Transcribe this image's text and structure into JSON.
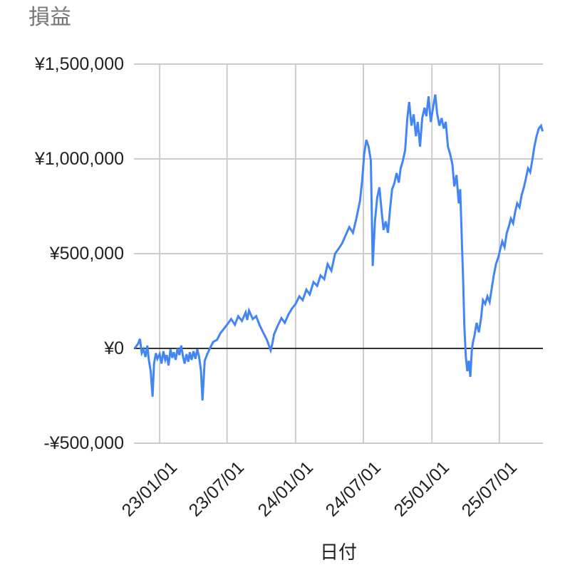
{
  "chart_data": {
    "type": "line",
    "title": "損益",
    "xlabel": "日付",
    "ylabel": "",
    "legend": "none",
    "grid": true,
    "colors": {
      "series": "#4285f4",
      "gridline": "#cccccc",
      "baseline": "#333333",
      "title": "#757575",
      "labels": "#212121",
      "background": "#ffffff"
    },
    "line_width": 3,
    "ylim": [
      -500000,
      1500000
    ],
    "x_domain": [
      "22/10/24",
      "25/10/26"
    ],
    "y_ticks": [
      {
        "label": "¥1,500,000",
        "value": 1500000
      },
      {
        "label": "¥1,000,000",
        "value": 1000000
      },
      {
        "label": "¥500,000",
        "value": 500000
      },
      {
        "label": "¥0",
        "value": 0
      },
      {
        "label": "-¥500,000",
        "value": -500000
      }
    ],
    "x_ticks": [
      {
        "label": "23/01/01",
        "date": "23/01/01"
      },
      {
        "label": "23/07/01",
        "date": "23/07/01"
      },
      {
        "label": "24/01/01",
        "date": "24/01/01"
      },
      {
        "label": "24/07/01",
        "date": "24/07/01"
      },
      {
        "label": "25/01/01",
        "date": "25/01/01"
      },
      {
        "label": "25/07/01",
        "date": "25/07/01"
      }
    ],
    "points": [
      [
        "22/10/26",
        0
      ],
      [
        "22/11/04",
        25000
      ],
      [
        "22/11/09",
        50000
      ],
      [
        "22/11/14",
        -25000
      ],
      [
        "22/11/19",
        -5000
      ],
      [
        "22/11/24",
        -45000
      ],
      [
        "22/11/29",
        15000
      ],
      [
        "22/12/03",
        -60000
      ],
      [
        "22/12/08",
        -120000
      ],
      [
        "22/12/13",
        -255000
      ],
      [
        "22/12/17",
        -80000
      ],
      [
        "22/12/22",
        -25000
      ],
      [
        "22/12/26",
        -55000
      ],
      [
        "23/01/01",
        -30000
      ],
      [
        "23/01/06",
        -80000
      ],
      [
        "23/01/11",
        -15000
      ],
      [
        "23/01/16",
        -60000
      ],
      [
        "23/01/20",
        -35000
      ],
      [
        "23/01/25",
        -90000
      ],
      [
        "23/01/30",
        -5000
      ],
      [
        "23/02/04",
        -50000
      ],
      [
        "23/02/08",
        -20000
      ],
      [
        "23/02/13",
        -60000
      ],
      [
        "23/02/18",
        0
      ],
      [
        "23/02/23",
        -35000
      ],
      [
        "23/02/28",
        15000
      ],
      [
        "23/03/05",
        -45000
      ],
      [
        "23/03/09",
        -80000
      ],
      [
        "23/03/14",
        -30000
      ],
      [
        "23/03/19",
        -70000
      ],
      [
        "23/03/23",
        -20000
      ],
      [
        "23/03/28",
        -60000
      ],
      [
        "23/04/02",
        -15000
      ],
      [
        "23/04/07",
        -55000
      ],
      [
        "23/04/12",
        -5000
      ],
      [
        "23/04/17",
        -45000
      ],
      [
        "23/04/22",
        -120000
      ],
      [
        "23/04/26",
        -275000
      ],
      [
        "23/05/02",
        -65000
      ],
      [
        "23/05/10",
        -25000
      ],
      [
        "23/05/17",
        5000
      ],
      [
        "23/05/25",
        35000
      ],
      [
        "23/06/04",
        45000
      ],
      [
        "23/06/13",
        80000
      ],
      [
        "23/06/23",
        105000
      ],
      [
        "23/07/03",
        130000
      ],
      [
        "23/07/12",
        155000
      ],
      [
        "23/07/22",
        125000
      ],
      [
        "23/07/31",
        170000
      ],
      [
        "23/08/10",
        145000
      ],
      [
        "23/08/20",
        190000
      ],
      [
        "23/08/24",
        150000
      ],
      [
        "23/08/29",
        200000
      ],
      [
        "23/09/08",
        155000
      ],
      [
        "23/09/17",
        170000
      ],
      [
        "23/09/27",
        120000
      ],
      [
        "23/10/07",
        80000
      ],
      [
        "23/10/16",
        45000
      ],
      [
        "23/10/26",
        -10000
      ],
      [
        "23/10/31",
        30000
      ],
      [
        "23/11/04",
        75000
      ],
      [
        "23/11/14",
        120000
      ],
      [
        "23/11/24",
        160000
      ],
      [
        "23/12/03",
        135000
      ],
      [
        "23/12/13",
        180000
      ],
      [
        "23/12/22",
        210000
      ],
      [
        "24/01/01",
        235000
      ],
      [
        "24/01/11",
        275000
      ],
      [
        "24/01/20",
        255000
      ],
      [
        "24/01/30",
        310000
      ],
      [
        "24/02/08",
        285000
      ],
      [
        "24/02/18",
        350000
      ],
      [
        "24/02/28",
        330000
      ],
      [
        "24/03/08",
        385000
      ],
      [
        "24/03/18",
        365000
      ],
      [
        "24/03/27",
        445000
      ],
      [
        "24/04/06",
        410000
      ],
      [
        "24/04/16",
        500000
      ],
      [
        "24/04/25",
        525000
      ],
      [
        "24/05/05",
        555000
      ],
      [
        "24/05/14",
        595000
      ],
      [
        "24/05/24",
        640000
      ],
      [
        "24/06/03",
        610000
      ],
      [
        "24/06/12",
        685000
      ],
      [
        "24/06/22",
        780000
      ],
      [
        "24/06/28",
        895000
      ],
      [
        "24/07/03",
        1025000
      ],
      [
        "24/07/09",
        1100000
      ],
      [
        "24/07/15",
        1065000
      ],
      [
        "24/07/21",
        990000
      ],
      [
        "24/07/26",
        435000
      ],
      [
        "24/08/01",
        670000
      ],
      [
        "24/08/07",
        795000
      ],
      [
        "24/08/13",
        850000
      ],
      [
        "24/08/19",
        725000
      ],
      [
        "24/08/24",
        625000
      ],
      [
        "24/08/30",
        670000
      ],
      [
        "24/09/05",
        610000
      ],
      [
        "24/09/11",
        745000
      ],
      [
        "24/09/16",
        840000
      ],
      [
        "24/09/22",
        870000
      ],
      [
        "24/09/28",
        925000
      ],
      [
        "24/10/04",
        875000
      ],
      [
        "24/10/09",
        950000
      ],
      [
        "24/10/15",
        990000
      ],
      [
        "24/10/21",
        1045000
      ],
      [
        "24/10/27",
        1215000
      ],
      [
        "24/11/01",
        1300000
      ],
      [
        "24/11/07",
        1175000
      ],
      [
        "24/11/13",
        1235000
      ],
      [
        "24/11/19",
        1120000
      ],
      [
        "24/11/24",
        1195000
      ],
      [
        "24/11/30",
        1065000
      ],
      [
        "24/12/06",
        1215000
      ],
      [
        "24/12/12",
        1270000
      ],
      [
        "24/12/17",
        1225000
      ],
      [
        "24/12/23",
        1330000
      ],
      [
        "24/12/29",
        1195000
      ],
      [
        "25/01/04",
        1270000
      ],
      [
        "25/01/10",
        1340000
      ],
      [
        "25/01/15",
        1240000
      ],
      [
        "25/01/21",
        1175000
      ],
      [
        "25/01/27",
        1215000
      ],
      [
        "25/02/02",
        1160000
      ],
      [
        "25/02/07",
        1195000
      ],
      [
        "25/02/13",
        1065000
      ],
      [
        "25/02/19",
        1025000
      ],
      [
        "25/02/25",
        970000
      ],
      [
        "25/03/02",
        855000
      ],
      [
        "25/03/08",
        915000
      ],
      [
        "25/03/14",
        765000
      ],
      [
        "25/03/18",
        840000
      ],
      [
        "25/03/22",
        595000
      ],
      [
        "25/03/26",
        350000
      ],
      [
        "25/03/29",
        120000
      ],
      [
        "25/04/02",
        -45000
      ],
      [
        "25/04/06",
        -120000
      ],
      [
        "25/04/10",
        -65000
      ],
      [
        "25/04/14",
        -150000
      ],
      [
        "25/04/18",
        -10000
      ],
      [
        "25/04/21",
        30000
      ],
      [
        "25/04/25",
        65000
      ],
      [
        "25/05/01",
        135000
      ],
      [
        "25/05/07",
        85000
      ],
      [
        "25/05/13",
        160000
      ],
      [
        "25/05/18",
        255000
      ],
      [
        "25/05/24",
        235000
      ],
      [
        "25/05/30",
        275000
      ],
      [
        "25/06/05",
        245000
      ],
      [
        "25/06/10",
        310000
      ],
      [
        "25/06/16",
        385000
      ],
      [
        "25/06/22",
        445000
      ],
      [
        "25/06/28",
        480000
      ],
      [
        "25/07/03",
        520000
      ],
      [
        "25/07/09",
        565000
      ],
      [
        "25/07/15",
        535000
      ],
      [
        "25/07/21",
        610000
      ],
      [
        "25/07/26",
        640000
      ],
      [
        "25/08/01",
        685000
      ],
      [
        "25/08/07",
        660000
      ],
      [
        "25/08/13",
        725000
      ],
      [
        "25/08/18",
        765000
      ],
      [
        "25/08/24",
        745000
      ],
      [
        "25/08/30",
        810000
      ],
      [
        "25/09/05",
        850000
      ],
      [
        "25/09/10",
        895000
      ],
      [
        "25/09/16",
        950000
      ],
      [
        "25/09/22",
        930000
      ],
      [
        "25/09/28",
        1000000
      ],
      [
        "25/10/03",
        1065000
      ],
      [
        "25/10/09",
        1120000
      ],
      [
        "25/10/15",
        1160000
      ],
      [
        "25/10/21",
        1175000
      ],
      [
        "25/10/25",
        1145000
      ]
    ]
  }
}
